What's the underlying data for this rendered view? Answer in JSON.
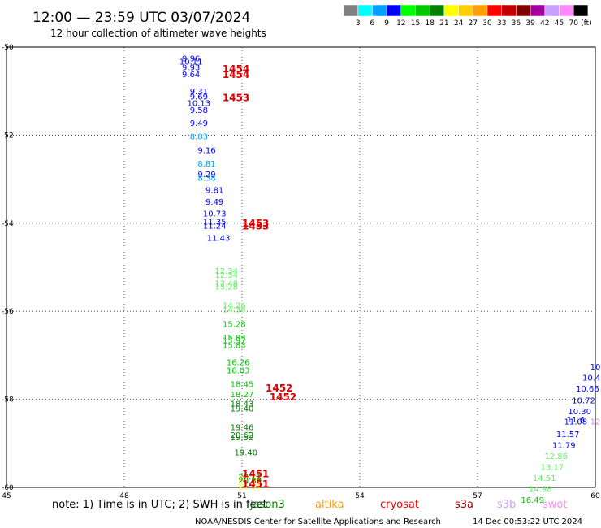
{
  "chart_data": {
    "type": "scatter",
    "title": "12:00 — 23:59 UTC 03/07/2024",
    "subtitle": "12 hour collection of altimeter wave heights",
    "xlim": [
      45,
      60
    ],
    "ylim": [
      -60,
      -50
    ],
    "x_ticks": [
      "45",
      "48",
      "51",
      "54",
      "57",
      "60"
    ],
    "y_ticks": [
      "-50",
      "-52",
      "-54",
      "-56",
      "-58",
      "-60"
    ],
    "colorbar": {
      "unit": "(ft)",
      "labels": [
        "3",
        "6",
        "9",
        "12",
        "15",
        "18",
        "21",
        "24",
        "27",
        "30",
        "33",
        "36",
        "39",
        "42",
        "45",
        "70"
      ],
      "colors": [
        "#808080",
        "#00ffff",
        "#00a0ff",
        "#0000ff",
        "#00ff00",
        "#00c800",
        "#008000",
        "#ffff00",
        "#ffd000",
        "#ffa000",
        "#ff0000",
        "#c00000",
        "#800000",
        "#a000a0",
        "#c8a0ff",
        "#ff88ff",
        "#000000"
      ]
    },
    "passes": [
      {
        "label": "1454",
        "x": 50.5,
        "y": -50.5
      },
      {
        "label": "1454",
        "x": 50.5,
        "y": -50.63
      },
      {
        "label": "1453",
        "x": 50.5,
        "y": -51.15
      },
      {
        "label": "1453",
        "x": 51.0,
        "y": -54.0
      },
      {
        "label": "1453",
        "x": 51.0,
        "y": -54.07
      },
      {
        "label": "1452",
        "x": 51.6,
        "y": -57.75
      },
      {
        "label": "1452",
        "x": 51.7,
        "y": -57.95
      },
      {
        "label": "1451",
        "x": 51.0,
        "y": -59.7
      },
      {
        "label": "1451",
        "x": 51.0,
        "y": -59.93
      }
    ],
    "points": [
      {
        "x": 49.7,
        "y": -50.25,
        "v": "9.96",
        "c": "#0000ff"
      },
      {
        "x": 49.7,
        "y": -50.32,
        "v": "10.11",
        "c": "#0000ff"
      },
      {
        "x": 49.7,
        "y": -50.45,
        "v": "9.93",
        "c": "#0000ff"
      },
      {
        "x": 49.7,
        "y": -50.61,
        "v": "9.64",
        "c": "#0000ff"
      },
      {
        "x": 49.9,
        "y": -51.0,
        "v": "9.31",
        "c": "#0000ff"
      },
      {
        "x": 49.9,
        "y": -51.12,
        "v": "9.69",
        "c": "#0000ff"
      },
      {
        "x": 49.9,
        "y": -51.26,
        "v": "10.13",
        "c": "#0000ff"
      },
      {
        "x": 49.9,
        "y": -51.42,
        "v": "9.58",
        "c": "#0000ff"
      },
      {
        "x": 49.9,
        "y": -51.72,
        "v": "9.49",
        "c": "#0000ff"
      },
      {
        "x": 49.9,
        "y": -52.02,
        "v": "8.83",
        "c": "#00a0ff"
      },
      {
        "x": 50.1,
        "y": -52.33,
        "v": "9.16",
        "c": "#0000ff"
      },
      {
        "x": 50.1,
        "y": -52.64,
        "v": "8.81",
        "c": "#00a0ff"
      },
      {
        "x": 50.1,
        "y": -52.88,
        "v": "9.29",
        "c": "#0000ff"
      },
      {
        "x": 50.1,
        "y": -52.96,
        "v": "8.38",
        "c": "#00a0ff"
      },
      {
        "x": 50.3,
        "y": -53.24,
        "v": "9.81",
        "c": "#0000ff"
      },
      {
        "x": 50.3,
        "y": -53.51,
        "v": "9.49",
        "c": "#0000ff"
      },
      {
        "x": 50.3,
        "y": -53.77,
        "v": "10.73",
        "c": "#0000ff"
      },
      {
        "x": 50.3,
        "y": -53.96,
        "v": "11.35",
        "c": "#0000ff"
      },
      {
        "x": 50.3,
        "y": -54.05,
        "v": "11.24",
        "c": "#0000ff"
      },
      {
        "x": 50.4,
        "y": -54.33,
        "v": "11.43",
        "c": "#0000ff"
      },
      {
        "x": 50.6,
        "y": -55.07,
        "v": "12.34",
        "c": "#66ee66"
      },
      {
        "x": 50.6,
        "y": -55.17,
        "v": "12.34",
        "c": "#66ee66"
      },
      {
        "x": 50.6,
        "y": -55.36,
        "v": "12.48",
        "c": "#66ee66"
      },
      {
        "x": 50.6,
        "y": -55.43,
        "v": "13.28",
        "c": "#66ee66"
      },
      {
        "x": 50.8,
        "y": -55.86,
        "v": "14.26",
        "c": "#66ee66"
      },
      {
        "x": 50.8,
        "y": -55.95,
        "v": "14.38",
        "c": "#66ee66"
      },
      {
        "x": 50.8,
        "y": -56.28,
        "v": "15.28",
        "c": "#00c800"
      },
      {
        "x": 50.8,
        "y": -56.59,
        "v": "15.83",
        "c": "#00c800"
      },
      {
        "x": 50.8,
        "y": -56.65,
        "v": "15.97",
        "c": "#00c800"
      },
      {
        "x": 50.8,
        "y": -56.76,
        "v": "15.83",
        "c": "#00c800"
      },
      {
        "x": 50.9,
        "y": -57.15,
        "v": "16.26",
        "c": "#00c800"
      },
      {
        "x": 50.9,
        "y": -57.33,
        "v": "16.03",
        "c": "#00c800"
      },
      {
        "x": 51.0,
        "y": -57.65,
        "v": "18.45",
        "c": "#00c800"
      },
      {
        "x": 51.0,
        "y": -57.88,
        "v": "18.27",
        "c": "#00c800"
      },
      {
        "x": 51.0,
        "y": -58.09,
        "v": "18.43",
        "c": "#008000"
      },
      {
        "x": 51.0,
        "y": -58.2,
        "v": "19.40",
        "c": "#008000"
      },
      {
        "x": 51.0,
        "y": -58.63,
        "v": "19.46",
        "c": "#008000"
      },
      {
        "x": 51.0,
        "y": -58.8,
        "v": "20.62",
        "c": "#008000"
      },
      {
        "x": 51.0,
        "y": -58.86,
        "v": "19.52",
        "c": "#008000"
      },
      {
        "x": 51.1,
        "y": -59.2,
        "v": "19.40",
        "c": "#008000"
      },
      {
        "x": 51.2,
        "y": -59.75,
        "v": "20.11",
        "c": "#008000"
      },
      {
        "x": 51.2,
        "y": -59.8,
        "v": "22.66",
        "c": "#ffff00"
      },
      {
        "x": 51.2,
        "y": -59.83,
        "v": "20.88",
        "c": "#008000"
      },
      {
        "x": 51.2,
        "y": -59.97,
        "v": "21.51",
        "c": "#ffff00"
      },
      {
        "x": 60.0,
        "y": -57.25,
        "v": "10",
        "c": "#0000ff"
      },
      {
        "x": 59.9,
        "y": -57.5,
        "v": "10.4",
        "c": "#0000ff"
      },
      {
        "x": 59.8,
        "y": -57.75,
        "v": "10.66",
        "c": "#0000ff"
      },
      {
        "x": 59.7,
        "y": -58.02,
        "v": "10.72",
        "c": "#0000ff"
      },
      {
        "x": 59.6,
        "y": -58.27,
        "v": "10.30",
        "c": "#0000ff"
      },
      {
        "x": 59.5,
        "y": -58.45,
        "v": "11.6",
        "c": "#0000ff"
      },
      {
        "x": 59.5,
        "y": -58.5,
        "v": "11.08",
        "c": "#0000ff"
      },
      {
        "x": 60.0,
        "y": -58.5,
        "v": "12",
        "c": "#dd88dd"
      },
      {
        "x": 59.3,
        "y": -58.78,
        "v": "11.57",
        "c": "#0000ff"
      },
      {
        "x": 59.2,
        "y": -59.03,
        "v": "11.79",
        "c": "#0000ff"
      },
      {
        "x": 59.0,
        "y": -59.28,
        "v": "12.86",
        "c": "#66ee66"
      },
      {
        "x": 58.9,
        "y": -59.53,
        "v": "13.17",
        "c": "#66ee66"
      },
      {
        "x": 58.7,
        "y": -59.78,
        "v": "14.51",
        "c": "#66ee66"
      },
      {
        "x": 58.6,
        "y": -60.03,
        "v": "14.98",
        "c": "#66ee66"
      },
      {
        "x": 58.4,
        "y": -60.28,
        "v": "16.49",
        "c": "#00c800"
      }
    ]
  },
  "note": "note:  1) Time is in UTC; 2) SWH is in feet",
  "legend": [
    {
      "label": "jason3",
      "color": "#008000"
    },
    {
      "label": "altika",
      "color": "#ff9900"
    },
    {
      "label": "cryosat",
      "color": "#ff0000"
    },
    {
      "label": "s3a",
      "color": "#a00000"
    },
    {
      "label": "s3b",
      "color": "#c8a0ff"
    },
    {
      "label": "swot",
      "color": "#ff88ff"
    }
  ],
  "credit": "NOAA/NESDIS Center for Satellite Applications and Research",
  "timestamp": "14 Dec 00:53:22 UTC 2024"
}
